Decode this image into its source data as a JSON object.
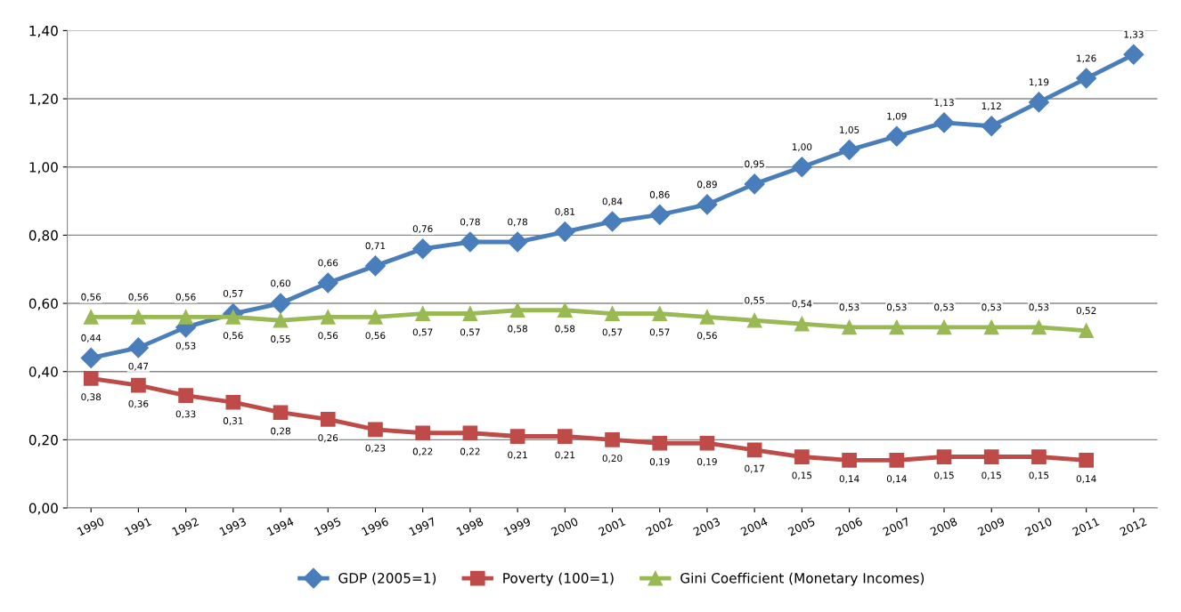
{
  "chart_data": {
    "type": "line",
    "categories": [
      "1990",
      "1991",
      "1992",
      "1993",
      "1994",
      "1995",
      "1996",
      "1997",
      "1998",
      "1999",
      "2000",
      "2001",
      "2002",
      "2003",
      "2004",
      "2005",
      "2006",
      "2007",
      "2008",
      "2009",
      "2010",
      "2011",
      "2012"
    ],
    "series": [
      {
        "name": "GDP (2005=1)",
        "color": "#4a7ebb",
        "marker": "diamond",
        "values": [
          0.44,
          0.47,
          0.53,
          0.57,
          0.6,
          0.66,
          0.71,
          0.76,
          0.78,
          0.78,
          0.81,
          0.84,
          0.86,
          0.89,
          0.95,
          1.0,
          1.05,
          1.09,
          1.13,
          1.12,
          1.19,
          1.26,
          1.33
        ],
        "value_labels": [
          "0,44",
          "0,47",
          "0,53",
          "0,57",
          "0,60",
          "0,66",
          "0,71",
          "0,76",
          "0,78",
          "0,78",
          "0,81",
          "0,84",
          "0,86",
          "0,89",
          "0,95",
          "1,00",
          "1,05",
          "1,09",
          "1,13",
          "1,12",
          "1,19",
          "1,26",
          "1,33"
        ]
      },
      {
        "name": "Poverty (100=1)",
        "color": "#be4b48",
        "marker": "square",
        "values": [
          0.38,
          0.36,
          0.33,
          0.31,
          0.28,
          0.26,
          0.23,
          0.22,
          0.22,
          0.21,
          0.21,
          0.2,
          0.19,
          0.19,
          0.17,
          0.15,
          0.14,
          0.14,
          0.15,
          0.15,
          0.15,
          0.14,
          null
        ],
        "value_labels": [
          "0,38",
          "0,36",
          "0,33",
          "0,31",
          "0,28",
          "0,26",
          "0,23",
          "0,22",
          "0,22",
          "0,21",
          "0,21",
          "0,20",
          "0,19",
          "0,19",
          "0,17",
          "0,15",
          "0,14",
          "0,14",
          "0,15",
          "0,15",
          "0,15",
          "0,14",
          null
        ]
      },
      {
        "name": "Gini Coefficient (Monetary Incomes)",
        "color": "#98b954",
        "marker": "triangle",
        "values": [
          0.56,
          0.56,
          0.56,
          0.56,
          0.55,
          0.56,
          0.56,
          0.57,
          0.57,
          0.58,
          0.58,
          0.57,
          0.57,
          0.56,
          0.55,
          0.54,
          0.53,
          0.53,
          0.53,
          0.53,
          0.53,
          0.52,
          null
        ],
        "value_labels": [
          "0,56",
          "0,56",
          "0,56",
          "0,56",
          "0,55",
          "0,56",
          "0,56",
          "0,57",
          "0,57",
          "0,58",
          "0,58",
          "0,57",
          "0,57",
          "0,56",
          "0,55",
          "0,54",
          "0,53",
          "0,53",
          "0,53",
          "0,53",
          "0,53",
          "0,52",
          null
        ]
      }
    ],
    "ylim": [
      0,
      1.4
    ],
    "yticks": [
      {
        "value": 0,
        "label": "0,00"
      },
      {
        "value": 0.2,
        "label": "0,20"
      },
      {
        "value": 0.4,
        "label": "0,40"
      },
      {
        "value": 0.6,
        "label": "0,60"
      },
      {
        "value": 0.8,
        "label": "0,80"
      },
      {
        "value": 1.0,
        "label": "1,00"
      },
      {
        "value": 1.2,
        "label": "1,20"
      },
      {
        "value": 1.4,
        "label": "1,40"
      }
    ],
    "grid": "y",
    "legend": "bottom",
    "line_style": "solid"
  }
}
